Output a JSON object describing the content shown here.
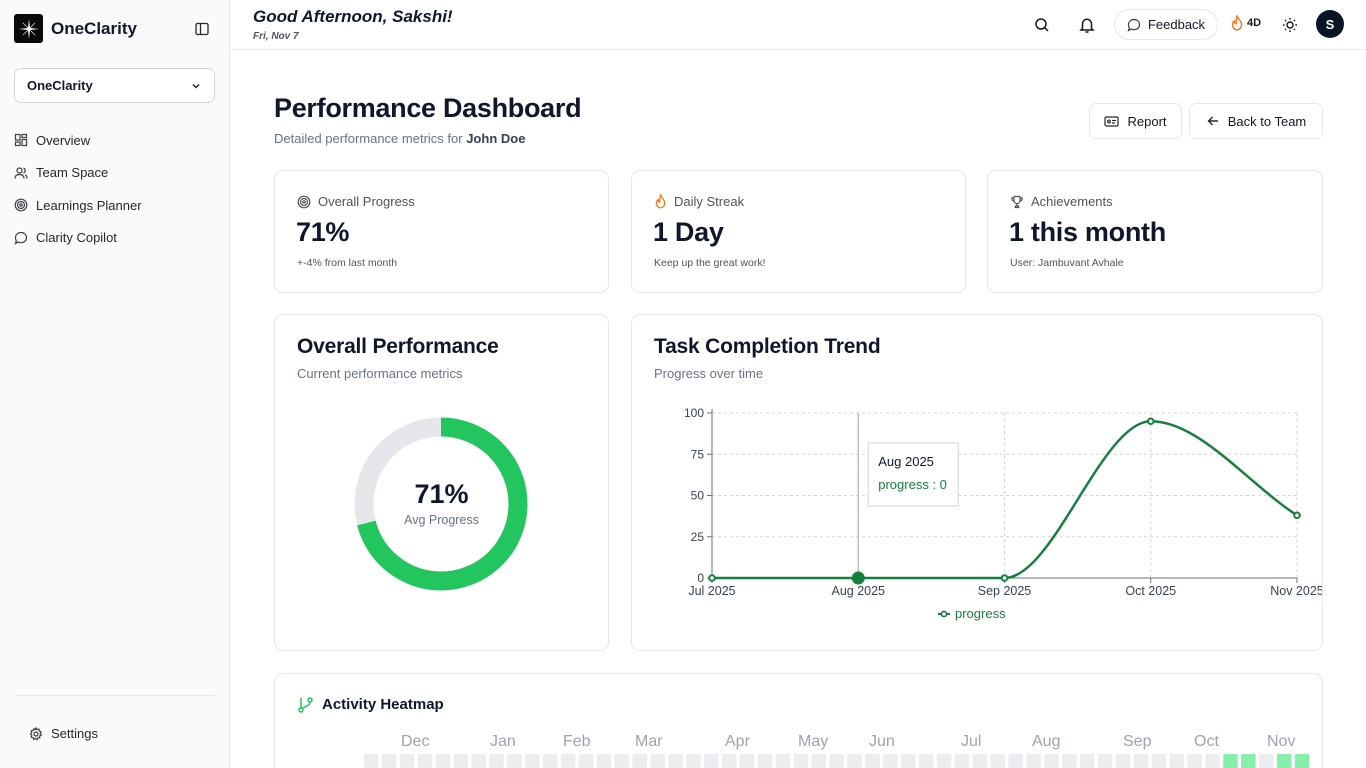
{
  "app": {
    "name": "OneClarity",
    "workspace": "OneClarity"
  },
  "sidebar": {
    "items": [
      {
        "label": "Overview",
        "icon": "grid-icon"
      },
      {
        "label": "Team Space",
        "icon": "users-icon"
      },
      {
        "label": "Learnings Planner",
        "icon": "target-icon"
      },
      {
        "label": "Clarity Copilot",
        "icon": "chat-icon"
      }
    ],
    "settings_label": "Settings"
  },
  "header": {
    "greeting": "Good Afternoon, Sakshi!",
    "date": "Fri, Nov 7",
    "feedback_label": "Feedback",
    "streak_label": "4D",
    "avatar_initial": "S"
  },
  "page": {
    "title": "Performance Dashboard",
    "subtitle_prefix": "Detailed performance metrics for",
    "subject_name": "John Doe",
    "report_label": "Report",
    "back_label": "Back to Team"
  },
  "stats": [
    {
      "label": "Overall Progress",
      "value": "71%",
      "note": "+-4% from last month"
    },
    {
      "label": "Daily Streak",
      "value": "1 Day",
      "note": "Keep up the great work!"
    },
    {
      "label": "Achievements",
      "value": "1 this month",
      "note": "User: Jambuvant Avhale"
    }
  ],
  "overall": {
    "title": "Overall Performance",
    "subtitle": "Current performance metrics",
    "value": "71%",
    "label": "Avg Progress",
    "percent": 71
  },
  "trend": {
    "title": "Task Completion Trend",
    "subtitle": "Progress over time"
  },
  "chart_data": {
    "type": "line",
    "title": "Task Completion Trend",
    "categories": [
      "Jul 2025",
      "Aug 2025",
      "Sep 2025",
      "Oct 2025",
      "Nov 2025"
    ],
    "series": [
      {
        "name": "progress",
        "values": [
          0,
          0,
          0,
          95,
          38
        ]
      }
    ],
    "ylim": [
      0,
      100
    ],
    "yticks": [
      0,
      25,
      50,
      75,
      100
    ],
    "tooltip": {
      "title": "Aug 2025",
      "text": "progress : 0"
    },
    "legend": "bottom",
    "color": "#15803d"
  },
  "heatmap": {
    "title": "Activity Heatmap",
    "months": [
      "Dec",
      "Jan",
      "Feb",
      "Mar",
      "Apr",
      "May",
      "Jun",
      "Jul",
      "Aug",
      "Sep",
      "Oct",
      "Nov"
    ],
    "active_cells": [
      48,
      49,
      51,
      52
    ]
  },
  "colors": {
    "accent": "#22c55e",
    "line": "#15803d",
    "track": "#e5e7eb",
    "heat_empty": "#ebedf0",
    "heat_active": "#86efac"
  }
}
